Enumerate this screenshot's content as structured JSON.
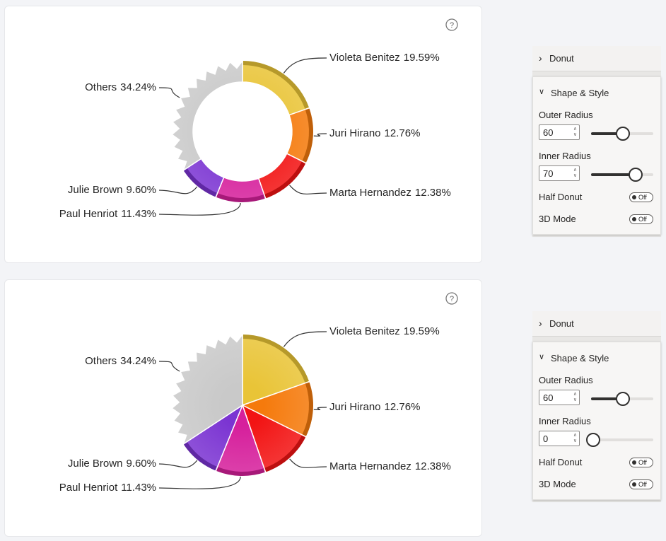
{
  "chart_data": [
    {
      "type": "donut",
      "help": "?",
      "categories": [
        "Violeta Benitez",
        "Juri Hirano",
        "Marta Hernandez",
        "Paul Henriot",
        "Julie Brown",
        "Others"
      ],
      "values": [
        19.59,
        12.76,
        12.38,
        11.43,
        9.6,
        34.24
      ],
      "value_labels": [
        "19.59%",
        "12.76%",
        "12.38%",
        "11.43%",
        "9.60%",
        "34.24%"
      ],
      "colors": [
        "#e9c437",
        "#f57a0c",
        "#f21414",
        "#d6209c",
        "#7b34d2",
        "#c9c9c9"
      ]
    },
    {
      "type": "pie",
      "help": "?",
      "categories": [
        "Violeta Benitez",
        "Juri Hirano",
        "Marta Hernandez",
        "Paul Henriot",
        "Julie Brown",
        "Others"
      ],
      "values": [
        19.59,
        12.76,
        12.38,
        11.43,
        9.6,
        34.24
      ],
      "value_labels": [
        "19.59%",
        "12.76%",
        "12.38%",
        "11.43%",
        "9.60%",
        "34.24%"
      ],
      "colors": [
        "#e9c437",
        "#f57a0c",
        "#f21414",
        "#d6209c",
        "#7b34d2",
        "#c9c9c9"
      ]
    }
  ],
  "panels": [
    {
      "header": "Donut",
      "section": "Shape & Style",
      "outer_label": "Outer Radius",
      "outer_value": "60",
      "inner_label": "Inner Radius",
      "inner_value": "70",
      "half_label": "Half Donut",
      "half_state": "Off",
      "mode_label": "3D Mode",
      "mode_state": "Off"
    },
    {
      "header": "Donut",
      "section": "Shape & Style",
      "outer_label": "Outer Radius",
      "outer_value": "60",
      "inner_label": "Inner Radius",
      "inner_value": "0",
      "half_label": "Half Donut",
      "half_state": "Off",
      "mode_label": "3D Mode",
      "mode_state": "Off"
    }
  ]
}
